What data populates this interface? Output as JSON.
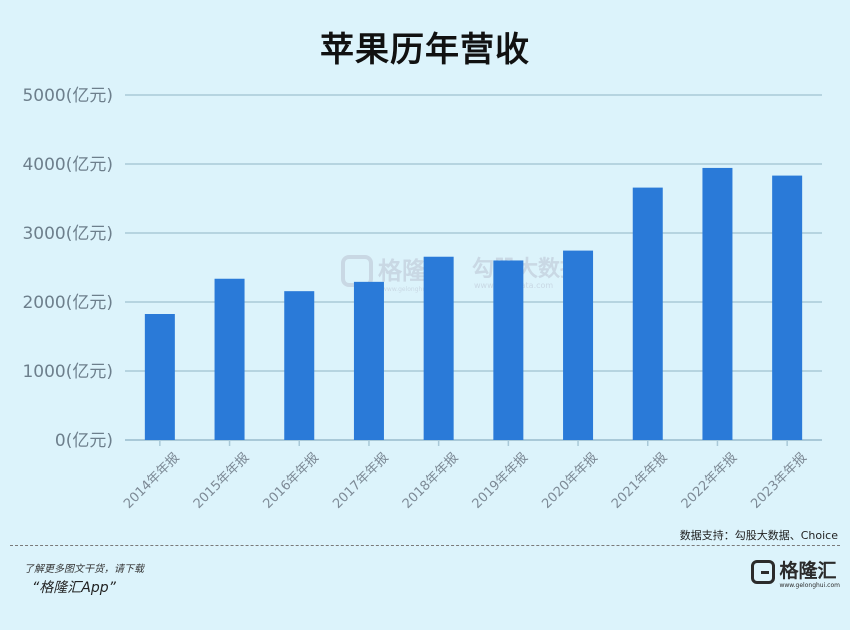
{
  "chart_data": {
    "type": "bar",
    "title": "苹果历年营收",
    "categories": [
      "2014年年报",
      "2015年年报",
      "2016年年报",
      "2017年年报",
      "2018年年报",
      "2019年年报",
      "2020年年报",
      "2021年年报",
      "2022年年报",
      "2023年年报"
    ],
    "values": [
      1826,
      2337,
      2157,
      2292,
      2656,
      2602,
      2745,
      3658,
      3943,
      3832
    ],
    "ylim": [
      0,
      5000
    ],
    "yticks": [
      0,
      1000,
      2000,
      3000,
      4000,
      5000
    ],
    "ytick_suffix": "(亿元)",
    "grid": true,
    "bar_color": "#2a7ad8",
    "grid_color": "#a9c9d8"
  },
  "watermark": {
    "brand1": "格隆汇",
    "brand1_url": "www.gelonghui.com",
    "brand2": "勾股大数据",
    "brand2_url": "www.gogudata.com"
  },
  "source_text": "数据支持：勾股大数据、Choice",
  "footer": {
    "line1": "了解更多图文干货，请下载",
    "line2": "“格隆汇App”"
  },
  "brand": {
    "name": "格隆汇",
    "url": "www.gelonghui.com",
    "icon": "g-logo-icon"
  }
}
